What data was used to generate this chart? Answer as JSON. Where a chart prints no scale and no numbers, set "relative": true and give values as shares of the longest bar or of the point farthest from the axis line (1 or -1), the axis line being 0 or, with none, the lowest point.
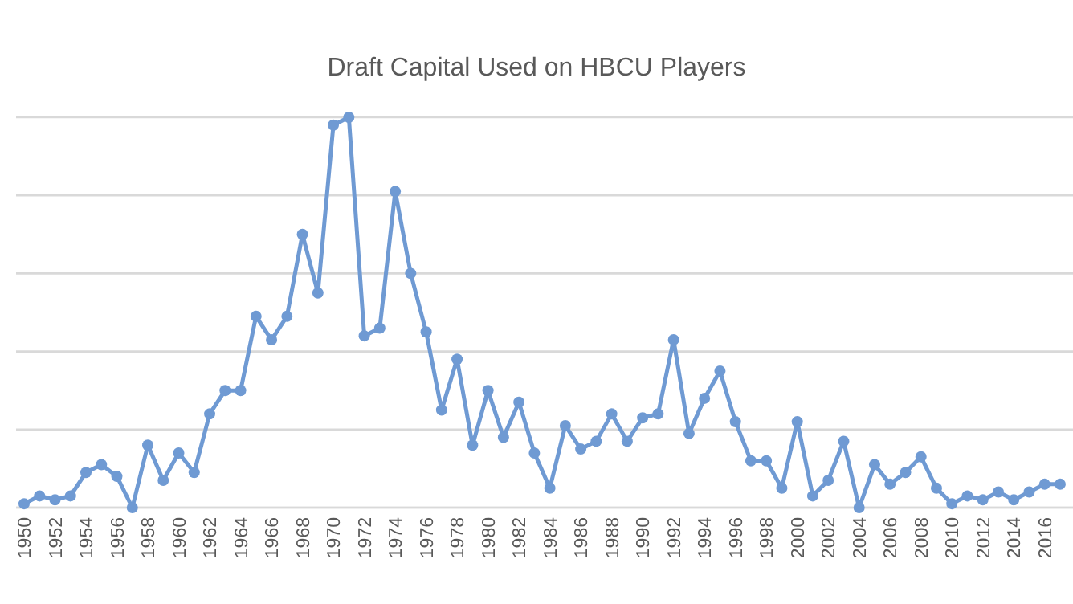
{
  "chart_data": {
    "type": "line",
    "title": "Draft Capital Used on HBCU Players",
    "relative": true,
    "grid": "y",
    "marker": "circle",
    "line_style": "solid",
    "categories": [
      "1950",
      null,
      "1952",
      null,
      "1954",
      null,
      "1956",
      null,
      "1958",
      null,
      "1960",
      null,
      "1962",
      null,
      "1964",
      null,
      "1966",
      null,
      "1968",
      null,
      "1970",
      null,
      "1972",
      null,
      "1974",
      null,
      "1976",
      null,
      "1978",
      null,
      "1980",
      null,
      "1982",
      null,
      "1984",
      null,
      "1986",
      null,
      "1988",
      null,
      "1990",
      null,
      "1992",
      null,
      "1994",
      null,
      "1996",
      null,
      "1998",
      null,
      "2000",
      null,
      "2002",
      null,
      "2004",
      null,
      "2006",
      null,
      "2008",
      null,
      "2010",
      null,
      "2012",
      null,
      "2014",
      null,
      "2016",
      null
    ],
    "series": [
      {
        "color": "#6f9ad3",
        "values": [
          0.01,
          0.03,
          0.02,
          0.03,
          0.09,
          0.11,
          0.08,
          0.0,
          0.16,
          0.07,
          0.14,
          0.09,
          0.24,
          0.3,
          0.3,
          0.49,
          0.43,
          0.49,
          0.7,
          0.55,
          0.98,
          1,
          0.44,
          0.46,
          0.81,
          0.6,
          0.45,
          0.25,
          0.38,
          0.16,
          0.3,
          0.18,
          0.27,
          0.14,
          0.05,
          0.21,
          0.15,
          0.17,
          0.24,
          0.17,
          0.23,
          0.24,
          0.43,
          0.19,
          0.28,
          0.35,
          0.22,
          0.12,
          0.12,
          0.05,
          0.22,
          0.03,
          0.07,
          0.17,
          0.0,
          0.11,
          0.06,
          0.09,
          0.13,
          0.05,
          0.01,
          0.03,
          0.02,
          0.04,
          0.02,
          0.04,
          0.06,
          0.06
        ]
      }
    ]
  }
}
